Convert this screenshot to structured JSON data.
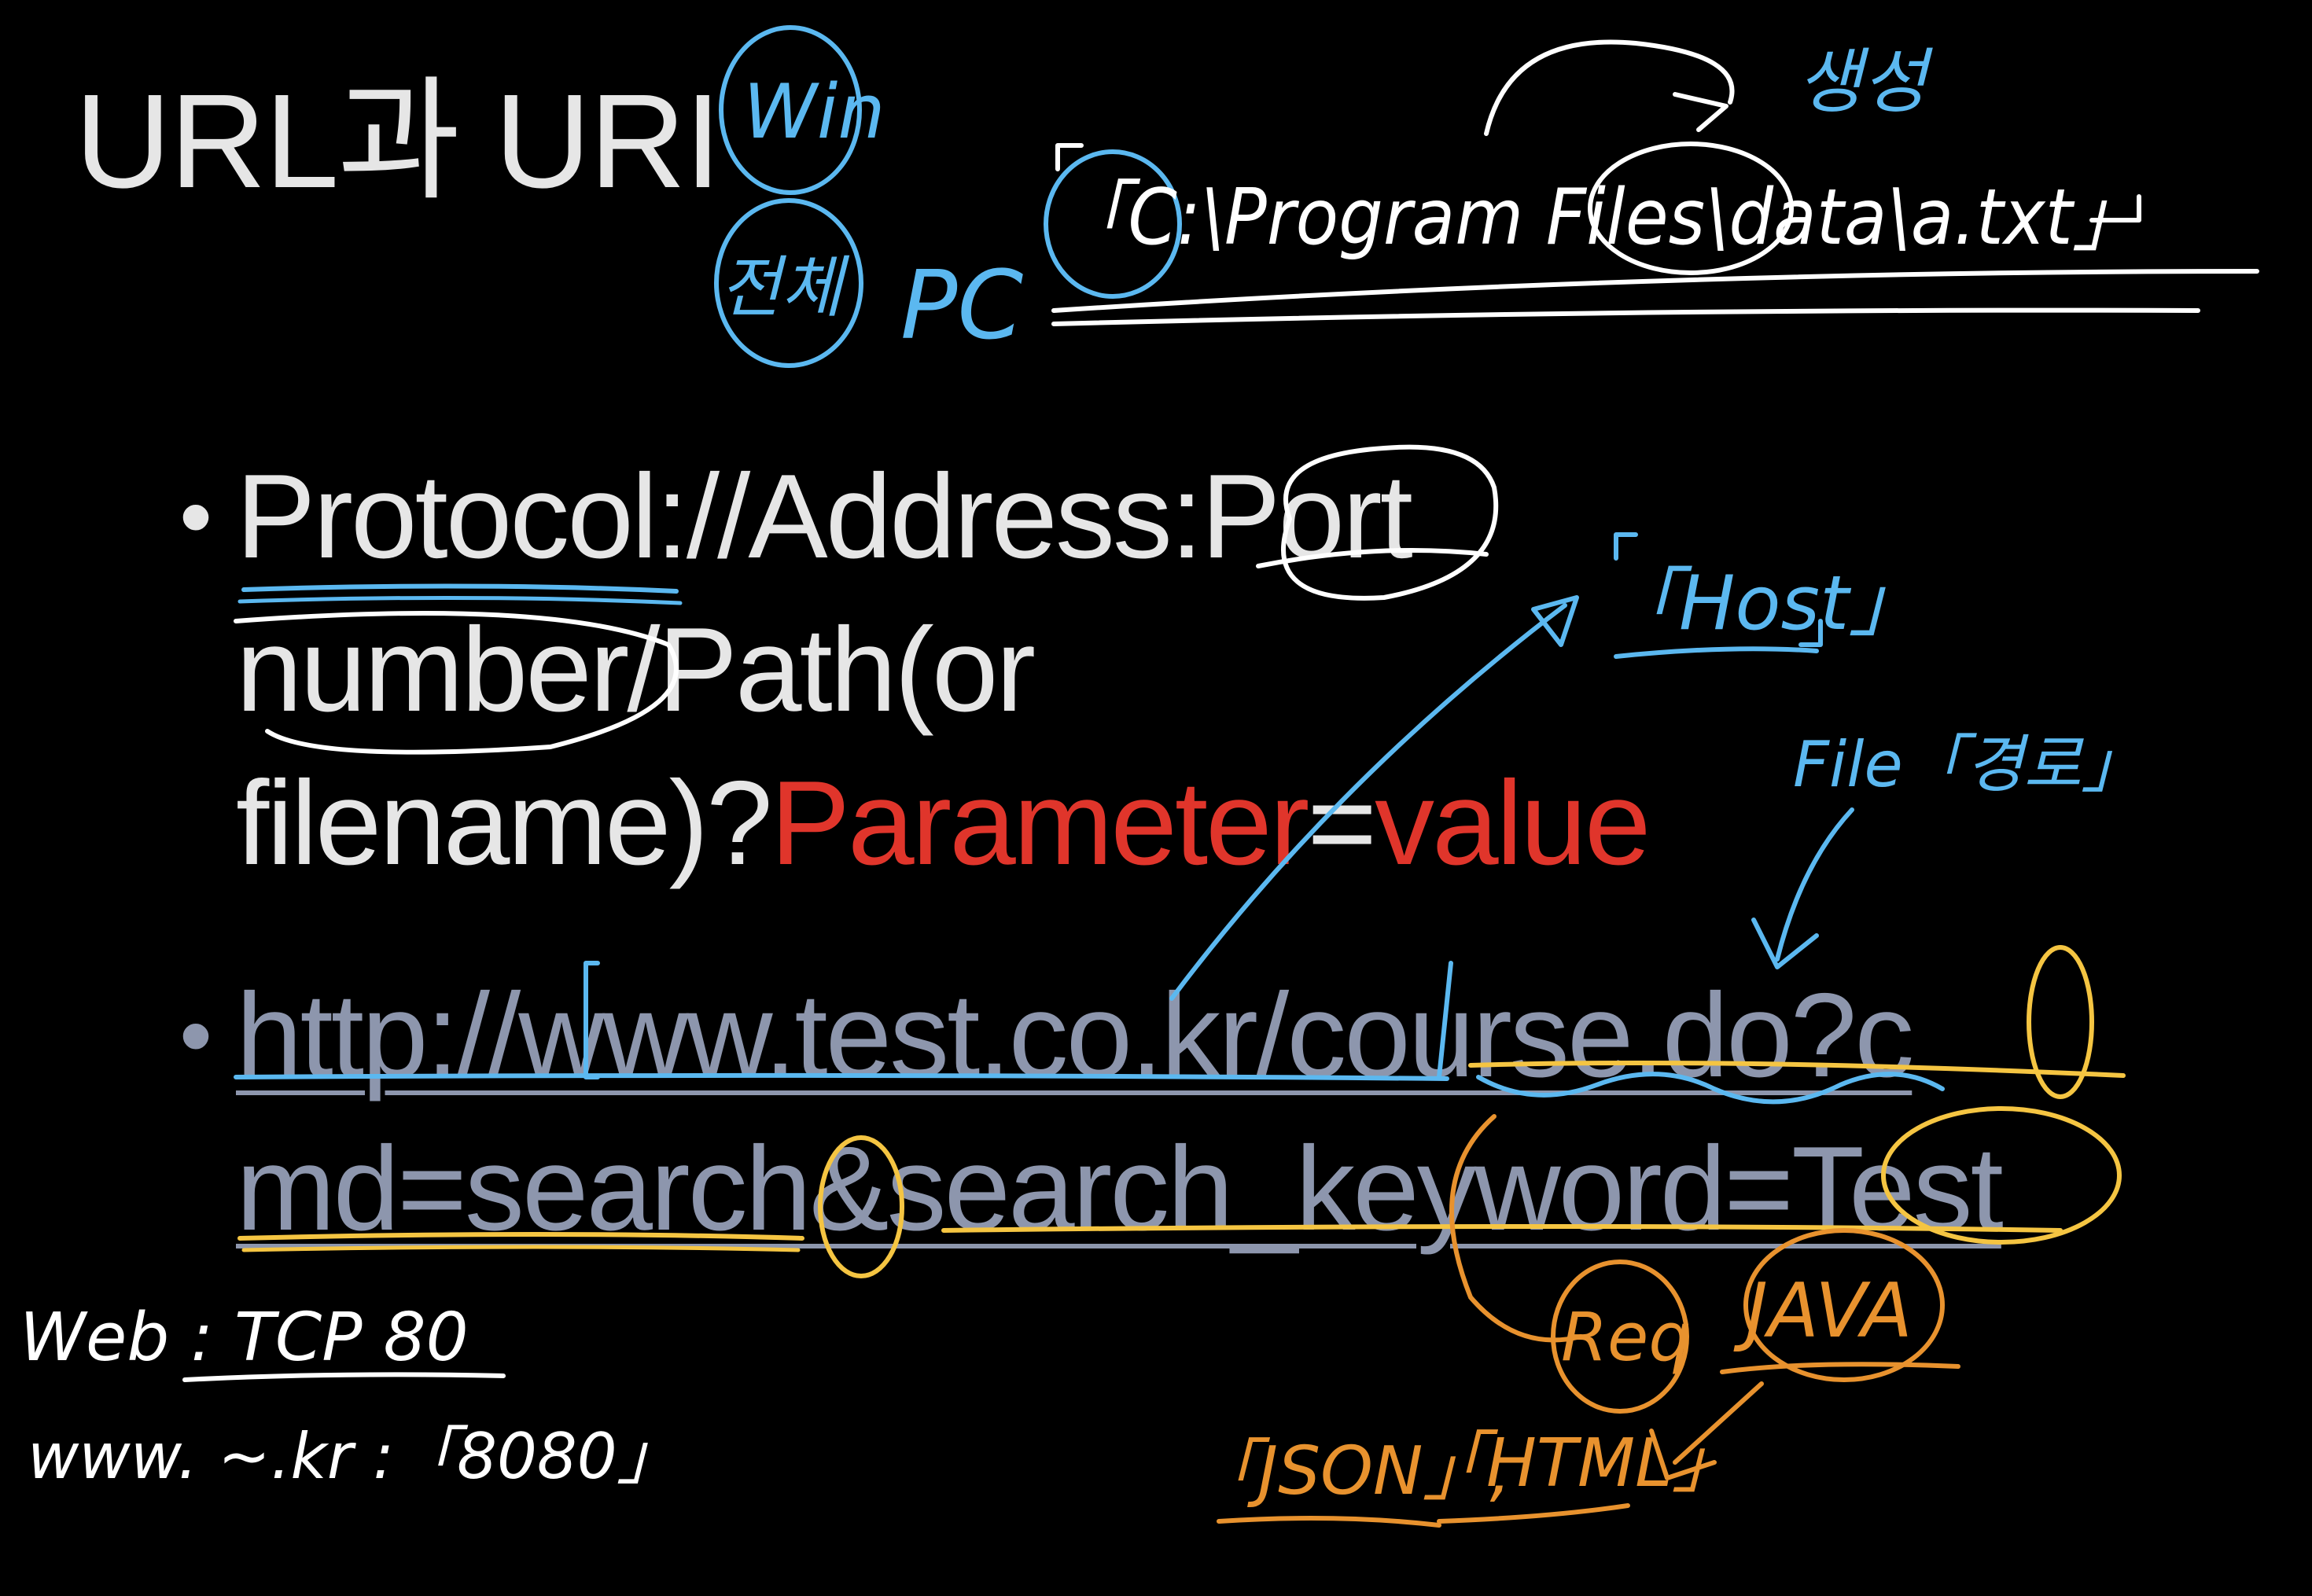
{
  "slide": {
    "title": "URL과 URI",
    "bullets": [
      {
        "lines": [
          {
            "text": "Protocol://Address:Port"
          },
          {
            "text": "number/Path(or"
          },
          {
            "pre": "filename)?",
            "red1": "Parameter",
            "mid": "=",
            "red2": "value"
          }
        ]
      },
      {
        "lines": [
          "http://www.test.co.kr/course.do?c",
          "md=search&search_keyword=Test"
        ]
      }
    ]
  },
  "annotations": {
    "win": "Win",
    "jeonche": "전체",
    "pc": "PC",
    "path_example": "「C:\\Program Files\\data\\a.txt」",
    "saengseong": "생성",
    "host": "「Host」",
    "file_path": "File「경로」",
    "web_port": "Web : TCP 80",
    "www_port": "www. ~.kr :「8080」",
    "req": "Req",
    "java": "JAVA",
    "json": "「JSON」,",
    "html": "「HTML」"
  },
  "colors": {
    "background": "#000000",
    "text": "#e6e6e6",
    "parameter_red": "#e0352b",
    "url_gray": "#8d96ad",
    "ink_blue": "#5bb8f0",
    "ink_white": "#ffffff",
    "ink_yellow": "#f5c542",
    "ink_orange": "#e8922e"
  }
}
